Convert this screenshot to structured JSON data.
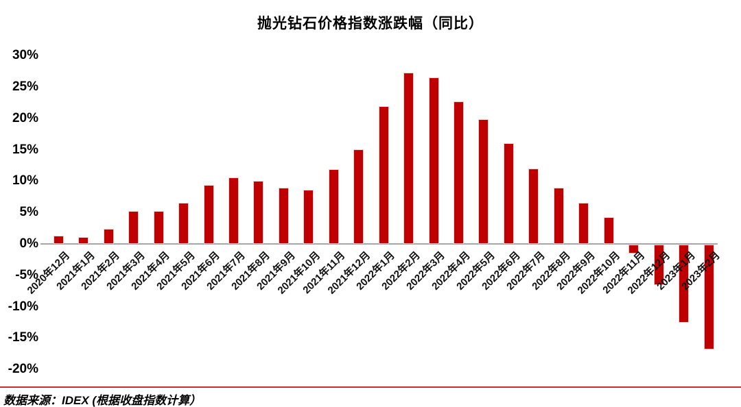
{
  "title": "抛光钻石价格指数涨跌幅（同比）",
  "source_note": "数据来源：IDEX (根据收盘指数计算）",
  "colors": {
    "bar_fill": "#C00000",
    "bar_border": "#EFCFCE",
    "axis_line": "#A6A6A6",
    "divider_line": "#CC2E2E",
    "text": "#000000"
  },
  "chart_data": {
    "type": "bar",
    "title": "抛光钻石价格指数涨跌幅（同比）",
    "unit": "%",
    "categories": [
      "2020年12月",
      "2021年1月",
      "2021年2月",
      "2021年3月",
      "2021年4月",
      "2021年5月",
      "2021年6月",
      "2021年7月",
      "2021年8月",
      "2021年9月",
      "2021年10月",
      "2021年11月",
      "2021年12月",
      "2022年1月",
      "2022年2月",
      "2022年3月",
      "2022年4月",
      "2022年5月",
      "2022年6月",
      "2022年7月",
      "2022年8月",
      "2022年9月",
      "2022年10月",
      "2022年11月",
      "2022年12月",
      "2023年1月",
      "2023年2月"
    ],
    "values": [
      1.3,
      1.1,
      2.4,
      5.2,
      5.2,
      6.6,
      9.4,
      10.6,
      10.0,
      8.9,
      8.6,
      11.9,
      15.1,
      21.9,
      27.3,
      26.5,
      22.7,
      19.9,
      16.1,
      12.0,
      8.9,
      6.6,
      4.3,
      -1.4,
      -6.4,
      -12.4,
      -16.7
    ],
    "ylabel": "",
    "xlabel": "",
    "ylim": [
      -20,
      30
    ],
    "ytick_step": 5,
    "ytick_labels": [
      "30%",
      "25%",
      "20%",
      "15%",
      "10%",
      "5%",
      "0%",
      "-5%",
      "-10%",
      "-15%",
      "-20%"
    ],
    "grid": false,
    "legend": false,
    "bar_color": "#C00000",
    "xtick_rotation_deg": 45,
    "footnote": "数据来源：IDEX (根据收盘指数计算）"
  }
}
